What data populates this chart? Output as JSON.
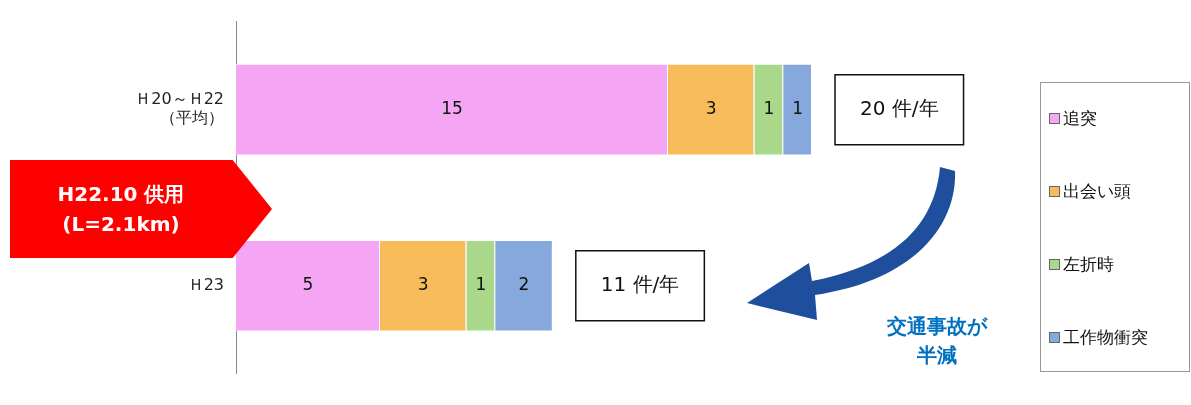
{
  "chart_data": {
    "type": "bar",
    "orientation": "horizontal",
    "stacked": true,
    "data_labels": true,
    "legend": "right",
    "grid": false,
    "categories": [
      "Ｈ20～Ｈ22\n（平均）",
      "Ｈ23"
    ],
    "series": [
      {
        "name": "追突",
        "color": "#f4a6f4",
        "values": [
          15,
          5
        ]
      },
      {
        "name": "出会い頭",
        "color": "#f6bc5a",
        "values": [
          3,
          3
        ]
      },
      {
        "name": "左折時",
        "color": "#a9d88a",
        "values": [
          1,
          1
        ]
      },
      {
        "name": "工作物衝突",
        "color": "#86a8dc",
        "values": [
          1,
          2
        ]
      }
    ],
    "totals": [
      "20 件/年",
      "11 件/年"
    ],
    "annotations": [
      "H22.10 供用\n(L=2.1km)",
      "交通事故が半減"
    ]
  }
}
